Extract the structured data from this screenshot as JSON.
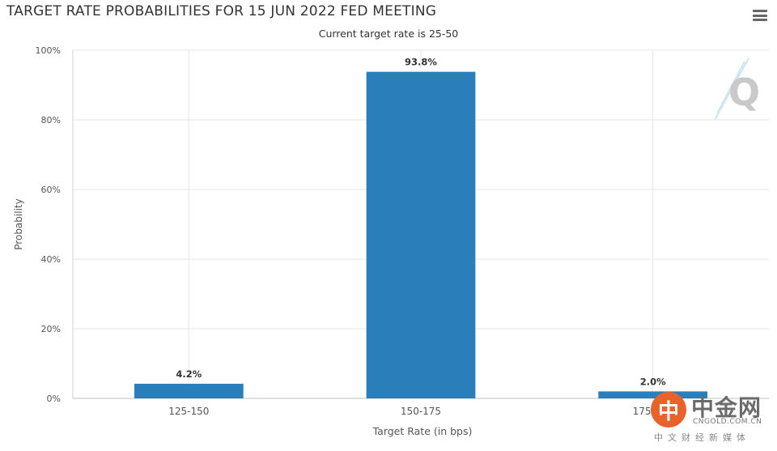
{
  "header": {
    "title": "TARGET RATE PROBABILITIES FOR 15 JUN 2022 FED MEETING",
    "subtitle": "Current target rate is 25-50"
  },
  "chart_data": {
    "type": "bar",
    "title": "TARGET RATE PROBABILITIES FOR 15 JUN 2022 FED MEETING",
    "subtitle": "Current target rate is 25-50",
    "xlabel": "Target Rate (in bps)",
    "ylabel": "Probability",
    "categories": [
      "125-150",
      "150-175",
      "175-200"
    ],
    "values": [
      4.2,
      93.8,
      2.0
    ],
    "data_labels": [
      "4.2%",
      "93.8%",
      "2.0%"
    ],
    "ylim": [
      0,
      100
    ],
    "yticks": [
      0,
      20,
      40,
      60,
      80,
      100
    ],
    "ytick_labels": [
      "0%",
      "20%",
      "40%",
      "60%",
      "80%",
      "100%"
    ],
    "grid": true,
    "bar_color": "#2a7fba",
    "legend": "none"
  },
  "watermark": {
    "brand_mark": "中",
    "brand_name": "中金网",
    "brand_domain": "CNGOLD.COM.CN",
    "brand_tagline": "中文财经新媒体"
  }
}
